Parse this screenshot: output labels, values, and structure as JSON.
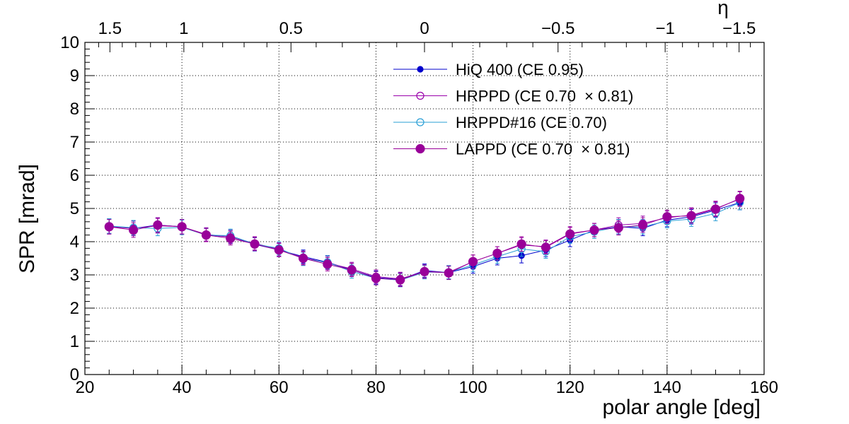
{
  "chart_data": {
    "type": "line",
    "xlabel": "polar angle [deg]",
    "ylabel": "SPR [mrad]",
    "top_axis_label": "η",
    "xlim": [
      20,
      160
    ],
    "ylim": [
      0,
      10
    ],
    "x_ticks": [
      "20",
      "40",
      "60",
      "80",
      "100",
      "120",
      "140",
      "160"
    ],
    "y_ticks": [
      "0",
      "1",
      "2",
      "3",
      "4",
      "5",
      "6",
      "7",
      "8",
      "9",
      "10"
    ],
    "top_ticks": [
      {
        "label": "1.5",
        "eta": 1.5
      },
      {
        "label": "1",
        "eta": 1.0
      },
      {
        "label": "0.5",
        "eta": 0.5
      },
      {
        "label": "0",
        "eta": 0.0
      },
      {
        "label": "−0.5",
        "eta": -0.5
      },
      {
        "label": "−1",
        "eta": -1.0
      },
      {
        "label": "−1.5",
        "eta": -1.5
      }
    ],
    "grid": true,
    "legend_position": "top-center",
    "x": [
      25,
      30,
      35,
      40,
      45,
      50,
      55,
      60,
      65,
      70,
      75,
      80,
      85,
      90,
      95,
      100,
      105,
      110,
      115,
      120,
      125,
      130,
      135,
      140,
      145,
      150,
      155
    ],
    "series": [
      {
        "name": "HiQ 400 (CE 0.95)",
        "color": "#0000cc",
        "marker": "filled-small",
        "values": [
          4.47,
          4.4,
          4.5,
          4.45,
          4.2,
          4.15,
          3.92,
          3.75,
          3.55,
          3.38,
          3.15,
          2.92,
          2.86,
          3.13,
          3.07,
          3.25,
          3.5,
          3.58,
          3.75,
          4.05,
          4.35,
          4.45,
          4.4,
          4.65,
          4.75,
          4.95,
          5.18
        ],
        "errors": [
          0.22,
          0.22,
          0.22,
          0.22,
          0.2,
          0.2,
          0.2,
          0.2,
          0.2,
          0.2,
          0.2,
          0.2,
          0.2,
          0.2,
          0.2,
          0.2,
          0.2,
          0.22,
          0.2,
          0.2,
          0.2,
          0.22,
          0.22,
          0.2,
          0.22,
          0.22,
          0.22
        ]
      },
      {
        "name": "HRPPD (CE 0.70  × 0.81)",
        "color": "#9900aa",
        "marker": "open",
        "values": [
          4.45,
          4.4,
          4.48,
          4.45,
          4.22,
          4.14,
          3.95,
          3.77,
          3.52,
          3.36,
          3.18,
          2.95,
          2.88,
          3.1,
          3.08,
          3.4,
          3.65,
          3.9,
          3.85,
          4.25,
          4.35,
          4.5,
          4.55,
          4.72,
          4.8,
          5.0,
          5.28
        ],
        "errors": [
          0.22,
          0.22,
          0.22,
          0.22,
          0.2,
          0.2,
          0.2,
          0.2,
          0.2,
          0.2,
          0.2,
          0.2,
          0.2,
          0.2,
          0.2,
          0.2,
          0.2,
          0.22,
          0.2,
          0.2,
          0.2,
          0.22,
          0.22,
          0.2,
          0.22,
          0.22,
          0.22
        ]
      },
      {
        "name": "HRPPD#16 (CE 0.70)",
        "color": "#2a9fd6",
        "marker": "open",
        "values": [
          4.47,
          4.42,
          4.4,
          4.43,
          4.2,
          4.18,
          3.93,
          3.8,
          3.48,
          3.38,
          3.1,
          2.9,
          2.84,
          3.08,
          3.08,
          3.3,
          3.55,
          3.78,
          3.7,
          4.15,
          4.3,
          4.45,
          4.45,
          4.62,
          4.68,
          4.85,
          5.18
        ],
        "errors": [
          0.22,
          0.22,
          0.22,
          0.22,
          0.2,
          0.2,
          0.2,
          0.2,
          0.2,
          0.2,
          0.2,
          0.2,
          0.2,
          0.2,
          0.2,
          0.2,
          0.2,
          0.22,
          0.2,
          0.2,
          0.2,
          0.22,
          0.22,
          0.2,
          0.22,
          0.22,
          0.22
        ]
      },
      {
        "name": "LAPPD (CE 0.70  × 0.81)",
        "color": "#990099",
        "marker": "filled-large",
        "values": [
          4.45,
          4.35,
          4.5,
          4.45,
          4.2,
          4.1,
          3.93,
          3.75,
          3.5,
          3.32,
          3.15,
          2.9,
          2.85,
          3.1,
          3.06,
          3.4,
          3.65,
          3.93,
          3.83,
          4.23,
          4.35,
          4.42,
          4.5,
          4.75,
          4.78,
          4.98,
          5.3
        ],
        "errors": [
          0.22,
          0.22,
          0.22,
          0.22,
          0.2,
          0.2,
          0.2,
          0.2,
          0.2,
          0.2,
          0.2,
          0.2,
          0.2,
          0.2,
          0.2,
          0.2,
          0.2,
          0.22,
          0.2,
          0.2,
          0.2,
          0.22,
          0.22,
          0.2,
          0.22,
          0.22,
          0.22
        ]
      }
    ]
  }
}
